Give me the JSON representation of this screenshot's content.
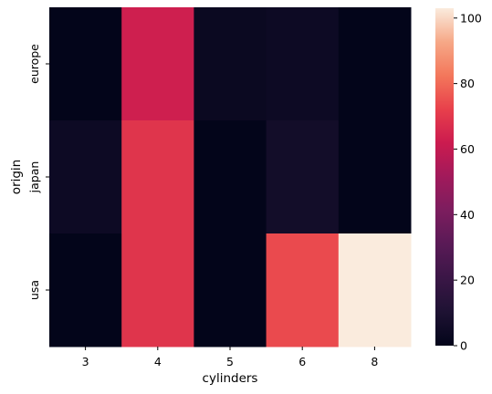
{
  "chart_data": {
    "type": "heatmap",
    "title": "",
    "xlabel": "cylinders",
    "ylabel": "origin",
    "x_categories": [
      "3",
      "4",
      "5",
      "6",
      "8"
    ],
    "y_categories": [
      "europe",
      "japan",
      "usa"
    ],
    "values": [
      [
        0,
        63,
        3,
        4,
        0
      ],
      [
        4,
        69,
        0,
        6,
        0
      ],
      [
        0,
        69,
        0,
        74,
        103
      ]
    ],
    "colorbar": {
      "min": 0,
      "max": 103,
      "ticks": [
        0,
        20,
        40,
        60,
        80,
        100
      ],
      "colormap": "rocket"
    }
  }
}
